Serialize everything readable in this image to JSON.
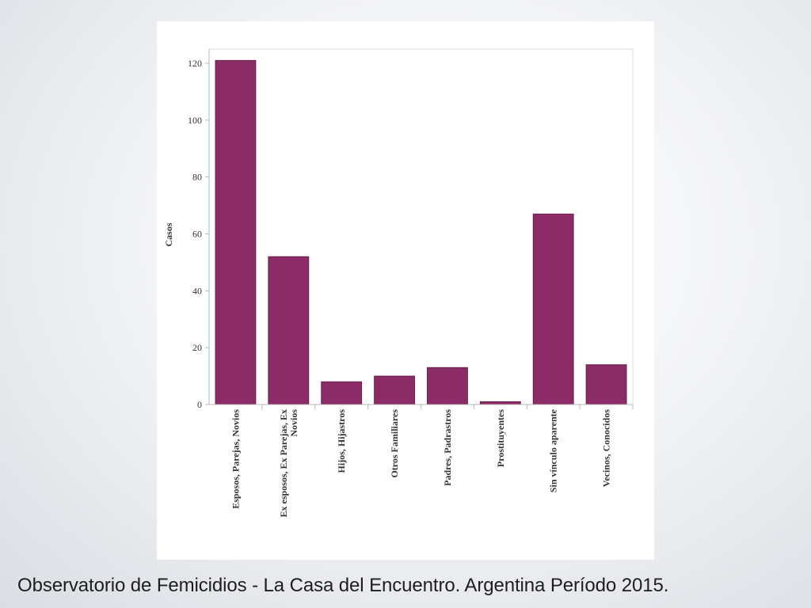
{
  "caption": "Observatorio de Femicidios - La Casa del Encuentro.  Argentina Período 2015.",
  "colors": {
    "bar_fill": "#8b2c66",
    "bar_stroke": "#6a1f4d",
    "axis": "#b8b8b8",
    "text": "#333333"
  },
  "chart_data": {
    "type": "bar",
    "title": "",
    "xlabel": "",
    "ylabel": "Casos",
    "ylim": [
      0,
      125
    ],
    "yticks": [
      0,
      20,
      40,
      60,
      80,
      100,
      120
    ],
    "grid": false,
    "categories": [
      "Esposos, Parejas, Novios",
      "Ex esposos, Ex Parejas, Ex Novios",
      "Hijos, Hijastros",
      "Otros Familiares",
      "Padres, Padrastros",
      "Prostituyentes",
      "Sin vínculo aparente",
      "Vecinos, Conocidos"
    ],
    "category_label_lines": [
      [
        "Esposos, Parejas, Novios"
      ],
      [
        "Ex esposos, Ex Parejas, Ex",
        "Novios"
      ],
      [
        "Hijos, Hijastros"
      ],
      [
        "Otros Familiares"
      ],
      [
        "Padres, Padrastros"
      ],
      [
        "Prostituyentes"
      ],
      [
        "Sin vínculo aparente"
      ],
      [
        "Vecinos, Conocidos"
      ]
    ],
    "values": [
      121,
      52,
      8,
      10,
      13,
      1,
      67,
      14
    ]
  }
}
